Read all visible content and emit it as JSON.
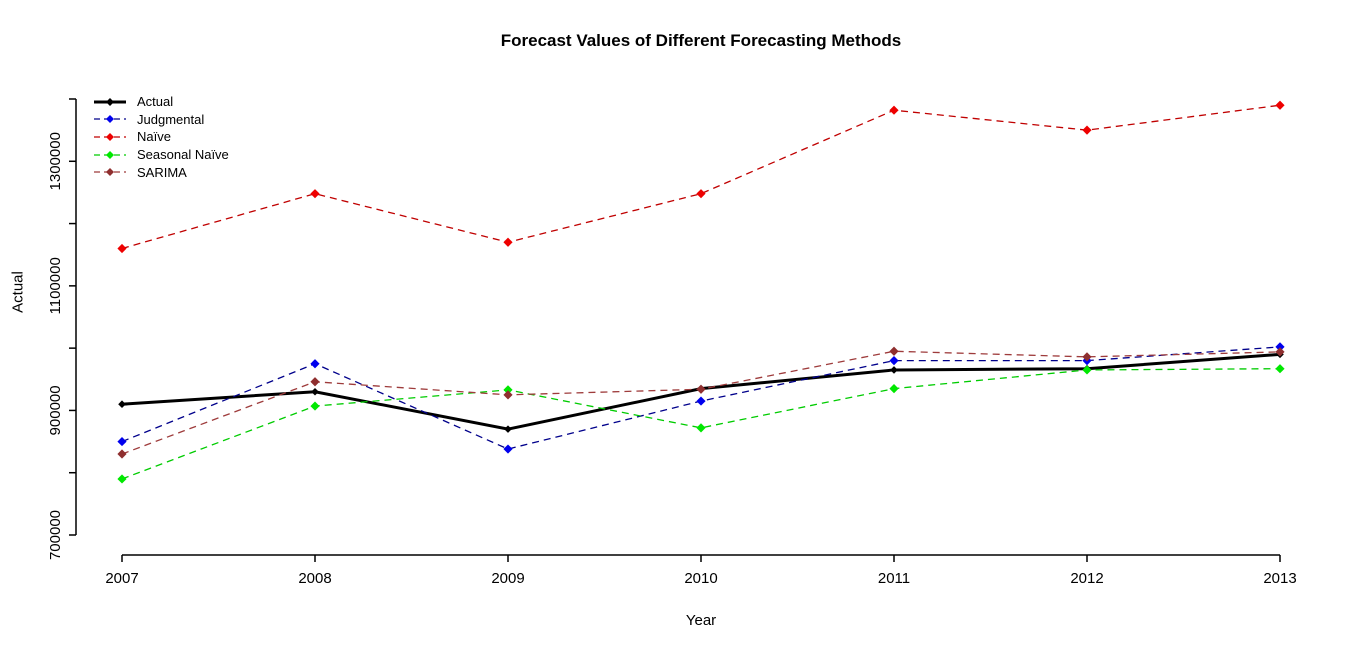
{
  "chart_data": {
    "type": "line",
    "title": "Forecast Values of Different Forecasting Methods",
    "xlabel": "Year",
    "ylabel": "Actual",
    "x": [
      2007,
      2008,
      2009,
      2010,
      2011,
      2012,
      2013
    ],
    "series": [
      {
        "name": "Actual",
        "line_color": "#000000",
        "marker_color": "#000000",
        "dash": "solid",
        "line_width": 3,
        "values": [
          910000,
          930000,
          870000,
          935000,
          965000,
          967000,
          990000
        ]
      },
      {
        "name": "Judgmental",
        "line_color": "#00008B",
        "marker_color": "#0000EE",
        "dash": "dashed",
        "line_width": 1.3,
        "values": [
          850000,
          975000,
          838000,
          915000,
          980000,
          980000,
          1002000
        ]
      },
      {
        "name": "Naïve",
        "line_color": "#C00000",
        "marker_color": "#EE0000",
        "dash": "dashed",
        "line_width": 1.3,
        "values": [
          1160000,
          1248000,
          1170000,
          1248000,
          1382000,
          1350000,
          1390000
        ]
      },
      {
        "name": "Seasonal Naïve",
        "line_color": "#00CC00",
        "marker_color": "#00E800",
        "dash": "dashed",
        "line_width": 1.3,
        "values": [
          790000,
          907000,
          933000,
          872000,
          935000,
          965000,
          967000
        ]
      },
      {
        "name": "SARIMA",
        "line_color": "#9E3B3B",
        "marker_color": "#8F2F2F",
        "dash": "dashed",
        "line_width": 1.3,
        "values": [
          830000,
          946000,
          925000,
          934000,
          995000,
          986000,
          994000
        ]
      }
    ],
    "axis": {
      "x_ticks": [
        "2007",
        "2008",
        "2009",
        "2010",
        "2011",
        "2012",
        "2013"
      ],
      "y_ticks": [
        700000,
        800000,
        900000,
        1000000,
        1100000,
        1200000,
        1300000,
        1400000
      ],
      "y_labeled_ticks": [
        "700000",
        "900000",
        "1100000",
        "1300000"
      ],
      "ylim": [
        700000,
        1400000
      ],
      "xlim": [
        2007,
        2013
      ],
      "grid": false
    },
    "legend_position": "top-left"
  }
}
